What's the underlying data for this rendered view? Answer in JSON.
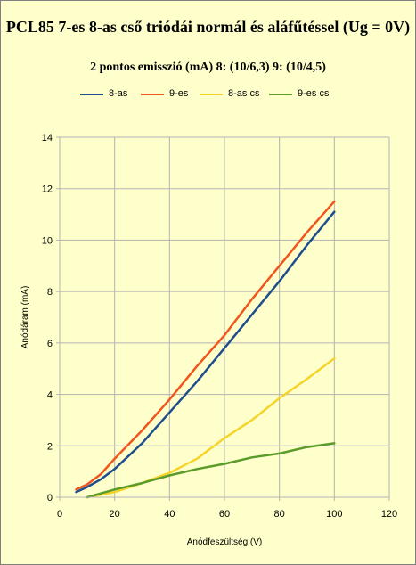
{
  "chart_data": {
    "type": "line",
    "title": "PCL85 7-es 8-as cső triódái normál és aláfűtéssel (Ug = 0V)",
    "subtitle": "2 pontos emisszió (mA) 8: (10/6,3) 9: (10/4,5)",
    "xlabel": "Anódfeszültség (V)",
    "ylabel": "Anódáram (mA)",
    "xlim": [
      0,
      120
    ],
    "ylim": [
      0,
      14
    ],
    "xticks": [
      "0",
      "20",
      "40",
      "60",
      "80",
      "100",
      "120"
    ],
    "yticks": [
      "0",
      "2",
      "4",
      "6",
      "8",
      "10",
      "12",
      "14"
    ],
    "grid": true,
    "legend_position": "top",
    "series": [
      {
        "name": "8-as",
        "color": "#1f4e8c",
        "x": [
          6,
          10,
          15,
          20,
          30,
          40,
          50,
          60,
          70,
          80,
          90,
          100
        ],
        "y": [
          0.2,
          0.4,
          0.7,
          1.1,
          2.1,
          3.3,
          4.5,
          5.8,
          7.1,
          8.4,
          9.8,
          11.1
        ]
      },
      {
        "name": "9-es",
        "color": "#f0561d",
        "x": [
          6,
          10,
          15,
          20,
          30,
          40,
          50,
          60,
          70,
          80,
          90,
          100
        ],
        "y": [
          0.3,
          0.5,
          0.9,
          1.5,
          2.6,
          3.8,
          5.1,
          6.3,
          7.7,
          9.0,
          10.3,
          11.5
        ]
      },
      {
        "name": "8-as cs",
        "color": "#f5d42a",
        "x": [
          10,
          20,
          30,
          40,
          50,
          60,
          70,
          80,
          90,
          100
        ],
        "y": [
          0.0,
          0.2,
          0.55,
          0.95,
          1.5,
          2.3,
          3.0,
          3.85,
          4.6,
          5.4
        ]
      },
      {
        "name": "9-es cs",
        "color": "#5a9b2a",
        "x": [
          10,
          20,
          30,
          40,
          50,
          60,
          70,
          80,
          90,
          100
        ],
        "y": [
          0.0,
          0.3,
          0.55,
          0.85,
          1.1,
          1.3,
          1.55,
          1.7,
          1.95,
          2.1
        ]
      }
    ]
  }
}
